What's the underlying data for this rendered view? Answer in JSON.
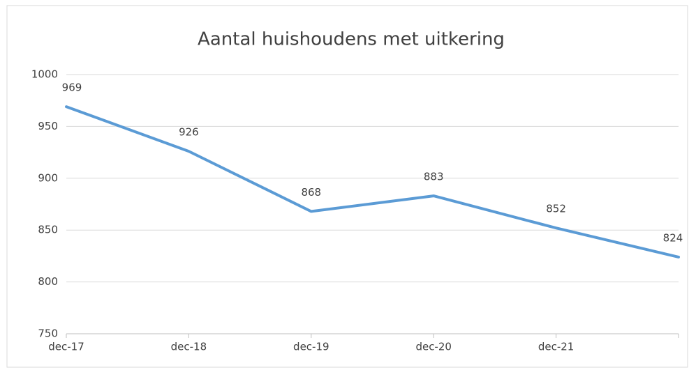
{
  "chart_data": {
    "type": "line",
    "title": "Aantal huishoudens met uitkering",
    "categories": [
      "dec-17",
      "dec-18",
      "dec-19",
      "dec-20",
      "dec-21",
      null
    ],
    "series": [
      {
        "name": "Aantal huishoudens",
        "color": "#5b9bd5",
        "values": [
          969,
          926,
          868,
          883,
          852,
          824
        ]
      }
    ],
    "ylim": [
      750,
      1000
    ],
    "yticks": [
      750,
      800,
      850,
      900,
      950,
      1000
    ],
    "grid": true,
    "data_labels": true
  }
}
